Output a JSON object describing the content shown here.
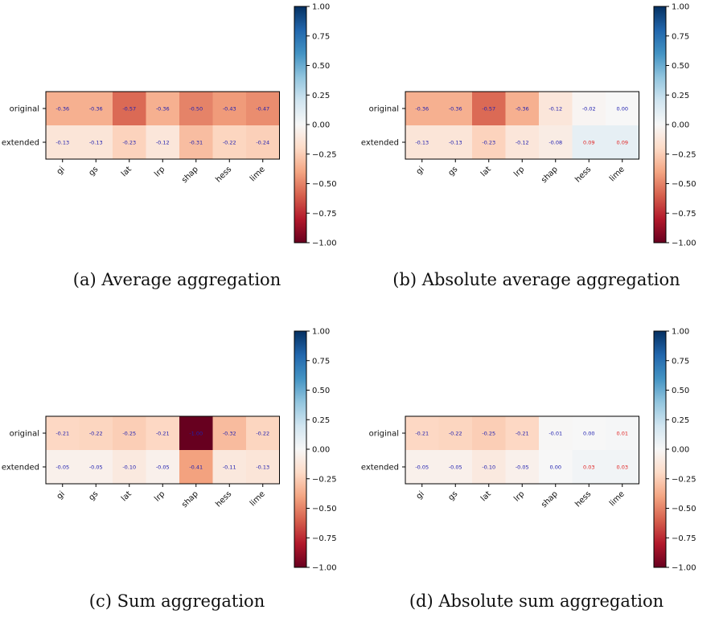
{
  "colors": {
    "scale": [
      "#67001f",
      "#b2182b",
      "#d6604d",
      "#f4a582",
      "#fddbc7",
      "#f7f7f7",
      "#d1e5f0",
      "#92c5de",
      "#4393c3",
      "#2166ac",
      "#053061"
    ],
    "label_text": "#2020b0",
    "label_text_positive": "#e02020"
  },
  "panels": [
    {
      "caption": "(a) Average aggregation",
      "chart_data": {
        "type": "heatmap",
        "rows": [
          "original",
          "extended"
        ],
        "columns": [
          "gi",
          "gs",
          "lat",
          "lrp",
          "shap",
          "hess",
          "lime"
        ],
        "values": [
          [
            -0.36,
            -0.36,
            -0.57,
            -0.36,
            -0.5,
            -0.43,
            -0.47
          ],
          [
            -0.13,
            -0.13,
            -0.23,
            -0.12,
            -0.31,
            -0.22,
            -0.24
          ]
        ],
        "labels": [
          [
            "-0.36",
            "-0.36",
            "-0.57",
            "-0.36",
            "-0.50",
            "-0.43",
            "-0.47"
          ],
          [
            "-0.13",
            "-0.13",
            "-0.23",
            "-0.12",
            "-0.31",
            "-0.22",
            "-0.24"
          ]
        ],
        "colorbar": {
          "range": [
            -1.0,
            1.0
          ],
          "ticks": [
            "1.00",
            "0.75",
            "0.50",
            "0.25",
            "0.00",
            "−0.25",
            "−0.50",
            "−0.75",
            "−1.00"
          ]
        }
      }
    },
    {
      "caption": "(b) Absolute average aggregation",
      "chart_data": {
        "type": "heatmap",
        "rows": [
          "original",
          "extended"
        ],
        "columns": [
          "gi",
          "gs",
          "lat",
          "lrp",
          "shap",
          "hess",
          "lime"
        ],
        "values": [
          [
            -0.36,
            -0.36,
            -0.57,
            -0.36,
            -0.12,
            -0.02,
            0.0
          ],
          [
            -0.13,
            -0.13,
            -0.23,
            -0.12,
            -0.08,
            0.09,
            0.09
          ]
        ],
        "labels": [
          [
            "-0.36",
            "-0.36",
            "-0.57",
            "-0.36",
            "-0.12",
            "-0.02",
            "0.00"
          ],
          [
            "-0.13",
            "-0.13",
            "-0.23",
            "-0.12",
            "-0.08",
            "0.09",
            "0.09"
          ]
        ],
        "colorbar": {
          "range": [
            -1.0,
            1.0
          ],
          "ticks": [
            "1.00",
            "0.75",
            "0.50",
            "0.25",
            "0.00",
            "−0.25",
            "−0.50",
            "−0.75",
            "−1.00"
          ]
        }
      }
    },
    {
      "caption": "(c) Sum aggregation",
      "chart_data": {
        "type": "heatmap",
        "rows": [
          "original",
          "extended"
        ],
        "columns": [
          "gi",
          "gs",
          "lat",
          "lrp",
          "shap",
          "hess",
          "lime"
        ],
        "values": [
          [
            -0.21,
            -0.22,
            -0.25,
            -0.21,
            -1.0,
            -0.32,
            -0.22
          ],
          [
            -0.05,
            -0.05,
            -0.1,
            -0.05,
            -0.41,
            -0.11,
            -0.13
          ]
        ],
        "labels": [
          [
            "-0.21",
            "-0.22",
            "-0.25",
            "-0.21",
            "-1.00",
            "-0.32",
            "-0.22"
          ],
          [
            "-0.05",
            "-0.05",
            "-0.10",
            "-0.05",
            "-0.41",
            "-0.11",
            "-0.13"
          ]
        ],
        "colorbar": {
          "range": [
            -1.0,
            1.0
          ],
          "ticks": [
            "1.00",
            "0.75",
            "0.50",
            "0.25",
            "0.00",
            "−0.25",
            "−0.50",
            "−0.75",
            "−1.00"
          ]
        }
      }
    },
    {
      "caption": "(d) Absolute sum aggregation",
      "chart_data": {
        "type": "heatmap",
        "rows": [
          "original",
          "extended"
        ],
        "columns": [
          "gi",
          "gs",
          "lat",
          "lrp",
          "shap",
          "hess",
          "lime"
        ],
        "values": [
          [
            -0.21,
            -0.22,
            -0.25,
            -0.21,
            -0.01,
            0.0,
            0.01
          ],
          [
            -0.05,
            -0.05,
            -0.1,
            -0.05,
            0.0,
            0.03,
            0.03
          ]
        ],
        "labels": [
          [
            "-0.21",
            "-0.22",
            "-0.25",
            "-0.21",
            "-0.01",
            "0.00",
            "0.01"
          ],
          [
            "-0.05",
            "-0.05",
            "-0.10",
            "-0.05",
            "0.00",
            "0.03",
            "0.03"
          ]
        ],
        "colorbar": {
          "range": [
            -1.0,
            1.0
          ],
          "ticks": [
            "1.00",
            "0.75",
            "0.50",
            "0.25",
            "0.00",
            "−0.25",
            "−0.50",
            "−0.75",
            "−1.00"
          ]
        }
      }
    }
  ]
}
